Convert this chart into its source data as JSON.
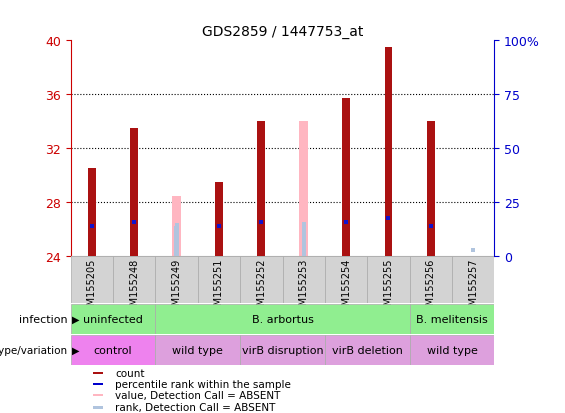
{
  "title": "GDS2859 / 1447753_at",
  "samples": [
    "GSM155205",
    "GSM155248",
    "GSM155249",
    "GSM155251",
    "GSM155252",
    "GSM155253",
    "GSM155254",
    "GSM155255",
    "GSM155256",
    "GSM155257"
  ],
  "bar_values": [
    30.5,
    33.5,
    0,
    29.5,
    34.0,
    0,
    35.7,
    39.5,
    34.0,
    0
  ],
  "absent_value_bars": [
    0,
    0,
    28.4,
    0,
    0,
    34.0,
    0,
    0,
    0,
    0
  ],
  "absent_rank_bars": [
    0,
    0,
    26.2,
    0,
    0,
    26.5,
    0,
    0,
    0,
    0
  ],
  "blue_squares": [
    26.2,
    26.5,
    0,
    26.2,
    26.5,
    0,
    26.5,
    26.8,
    26.2,
    0
  ],
  "abs_rank_sq": [
    0,
    0,
    26.3,
    0,
    0,
    0,
    0,
    0,
    0,
    24.4
  ],
  "ylim_left": [
    24,
    40
  ],
  "yticks_left": [
    24,
    28,
    32,
    36,
    40
  ],
  "ylim_right": [
    0,
    100
  ],
  "yticks_right": [
    0,
    25,
    50,
    75,
    100
  ],
  "bar_bottom": 24,
  "infection_blocks": [
    {
      "label": "uninfected",
      "start": 0,
      "end": 2,
      "color": "#90ee90"
    },
    {
      "label": "B. arbortus",
      "start": 2,
      "end": 8,
      "color": "#90ee90"
    },
    {
      "label": "B. melitensis",
      "start": 8,
      "end": 10,
      "color": "#90ee90"
    }
  ],
  "genotype_blocks": [
    {
      "label": "control",
      "start": 0,
      "end": 2,
      "color": "#ee82ee"
    },
    {
      "label": "wild type",
      "start": 2,
      "end": 4,
      "color": "#dda0dd"
    },
    {
      "label": "virB disruption",
      "start": 4,
      "end": 6,
      "color": "#dda0dd"
    },
    {
      "label": "virB deletion",
      "start": 6,
      "end": 8,
      "color": "#dda0dd"
    },
    {
      "label": "wild type",
      "start": 8,
      "end": 10,
      "color": "#dda0dd"
    }
  ],
  "legend_items": [
    {
      "color": "#aa1111",
      "label": "count"
    },
    {
      "color": "#0000cc",
      "label": "percentile rank within the sample"
    },
    {
      "color": "#ffb6c1",
      "label": "value, Detection Call = ABSENT"
    },
    {
      "color": "#b0c4de",
      "label": "rank, Detection Call = ABSENT"
    }
  ],
  "red_color": "#aa1111",
  "blue_color": "#1111cc",
  "pink_color": "#ffb6c1",
  "lblue_color": "#b0c4de",
  "left_tick_color": "#cc0000",
  "right_tick_color": "#0000cc",
  "bar_width": 0.18,
  "absent_bar_width": 0.22
}
